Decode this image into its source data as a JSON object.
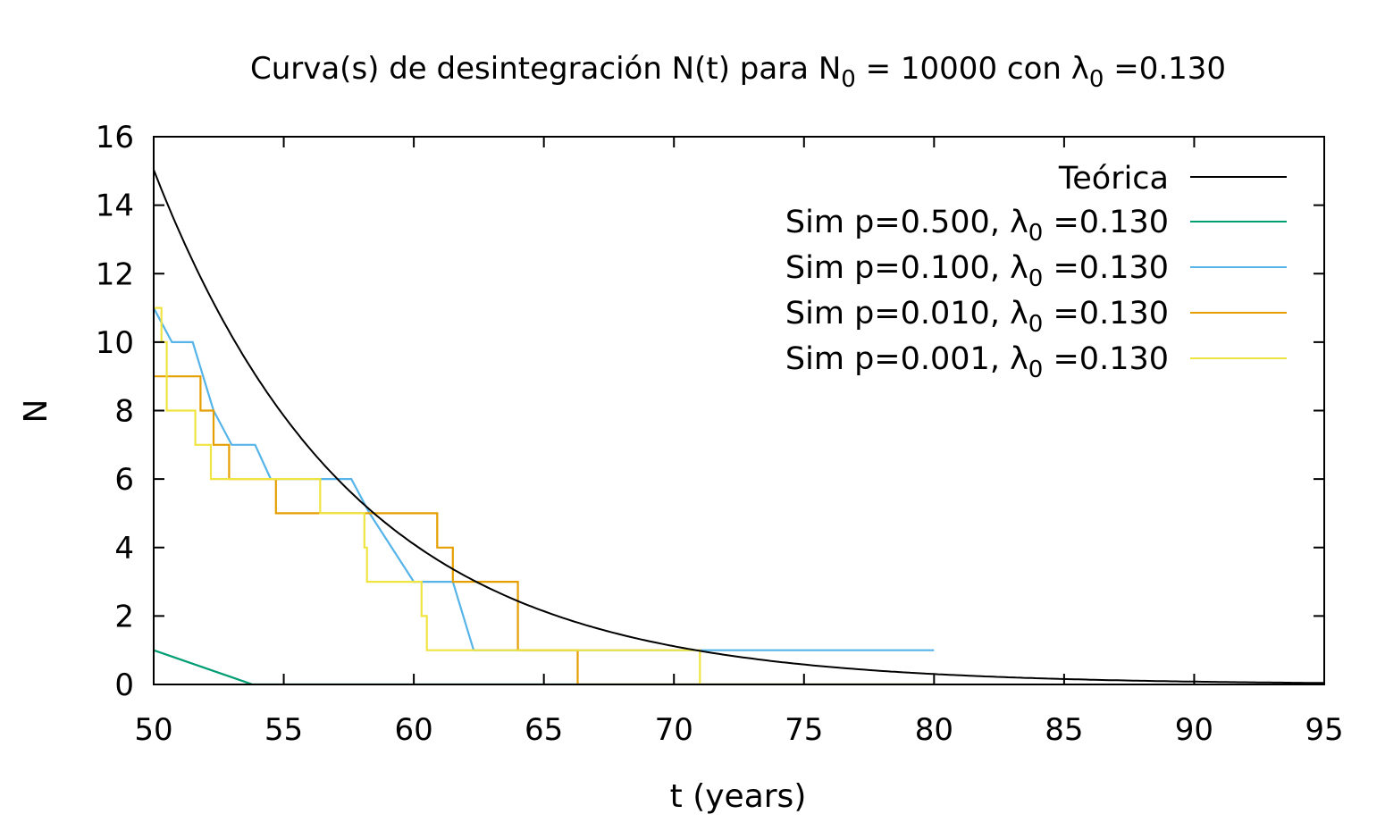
{
  "chart_data": {
    "type": "line",
    "title": {
      "prefix": "Curva(s) de desintegración N(t) para N",
      "sub1": "0",
      "mid": " = 10000  con λ",
      "sub2": "0",
      "suffix": " =0.130"
    },
    "xlabel": "t (years)",
    "ylabel": "N",
    "xlim": [
      50,
      95
    ],
    "ylim": [
      0,
      16
    ],
    "xticks": [
      "50",
      "55",
      "60",
      "65",
      "70",
      "75",
      "80",
      "85",
      "90",
      "95"
    ],
    "yticks": [
      "0",
      "2",
      "4",
      "6",
      "8",
      "10",
      "12",
      "14",
      "16"
    ],
    "grid": false,
    "legend_position": "top-right",
    "theory": {
      "name": "Teórica",
      "color": "#000000",
      "N0": 10000,
      "lambda": 0.13
    },
    "series": [
      {
        "name": {
          "prefix": "Sim p=0.500, λ",
          "sub": "0",
          "suffix": " =0.130"
        },
        "color": "#009e73",
        "x": [
          50,
          53.8,
          80
        ],
        "y": [
          1,
          0,
          0
        ]
      },
      {
        "name": {
          "prefix": "Sim p=0.100, λ",
          "sub": "0",
          "suffix": " =0.130"
        },
        "color": "#56b4e9",
        "x": [
          50,
          50.7,
          51.5,
          52.3,
          53.0,
          53.9,
          54.5,
          57.6,
          58.3,
          60.0,
          61.5,
          62.3,
          80
        ],
        "y": [
          11,
          10,
          10,
          8,
          7,
          7,
          6,
          6,
          5,
          3,
          3,
          1,
          1
        ]
      },
      {
        "name": {
          "prefix": "Sim p=0.010, λ",
          "sub": "0",
          "suffix": " =0.130"
        },
        "color": "#e69f00",
        "x": [
          50,
          51.8,
          51.8,
          52.3,
          52.3,
          52.9,
          52.9,
          54.7,
          54.7,
          58.3,
          58.3,
          60.9,
          60.9,
          61.5,
          61.5,
          64.0,
          64.0,
          66.3,
          66.3,
          80
        ],
        "y": [
          9,
          9,
          8,
          8,
          7,
          7,
          6,
          6,
          5,
          5,
          5,
          5,
          4,
          4,
          3,
          3,
          1,
          1,
          0,
          0
        ]
      },
      {
        "name": {
          "prefix": "Sim p=0.001, λ",
          "sub": "0",
          "suffix": " =0.130"
        },
        "color": "#f0e442",
        "x": [
          50,
          50.3,
          50.3,
          50.5,
          50.5,
          51.6,
          51.6,
          52.2,
          52.2,
          56.4,
          56.4,
          58.1,
          58.1,
          58.2,
          58.2,
          60.3,
          60.3,
          60.5,
          60.5,
          71.0,
          71.0
        ],
        "y": [
          11,
          11,
          10,
          10,
          8,
          8,
          7,
          7,
          6,
          6,
          5,
          5,
          4,
          4,
          3,
          3,
          2,
          2,
          1,
          1,
          0
        ]
      }
    ]
  }
}
